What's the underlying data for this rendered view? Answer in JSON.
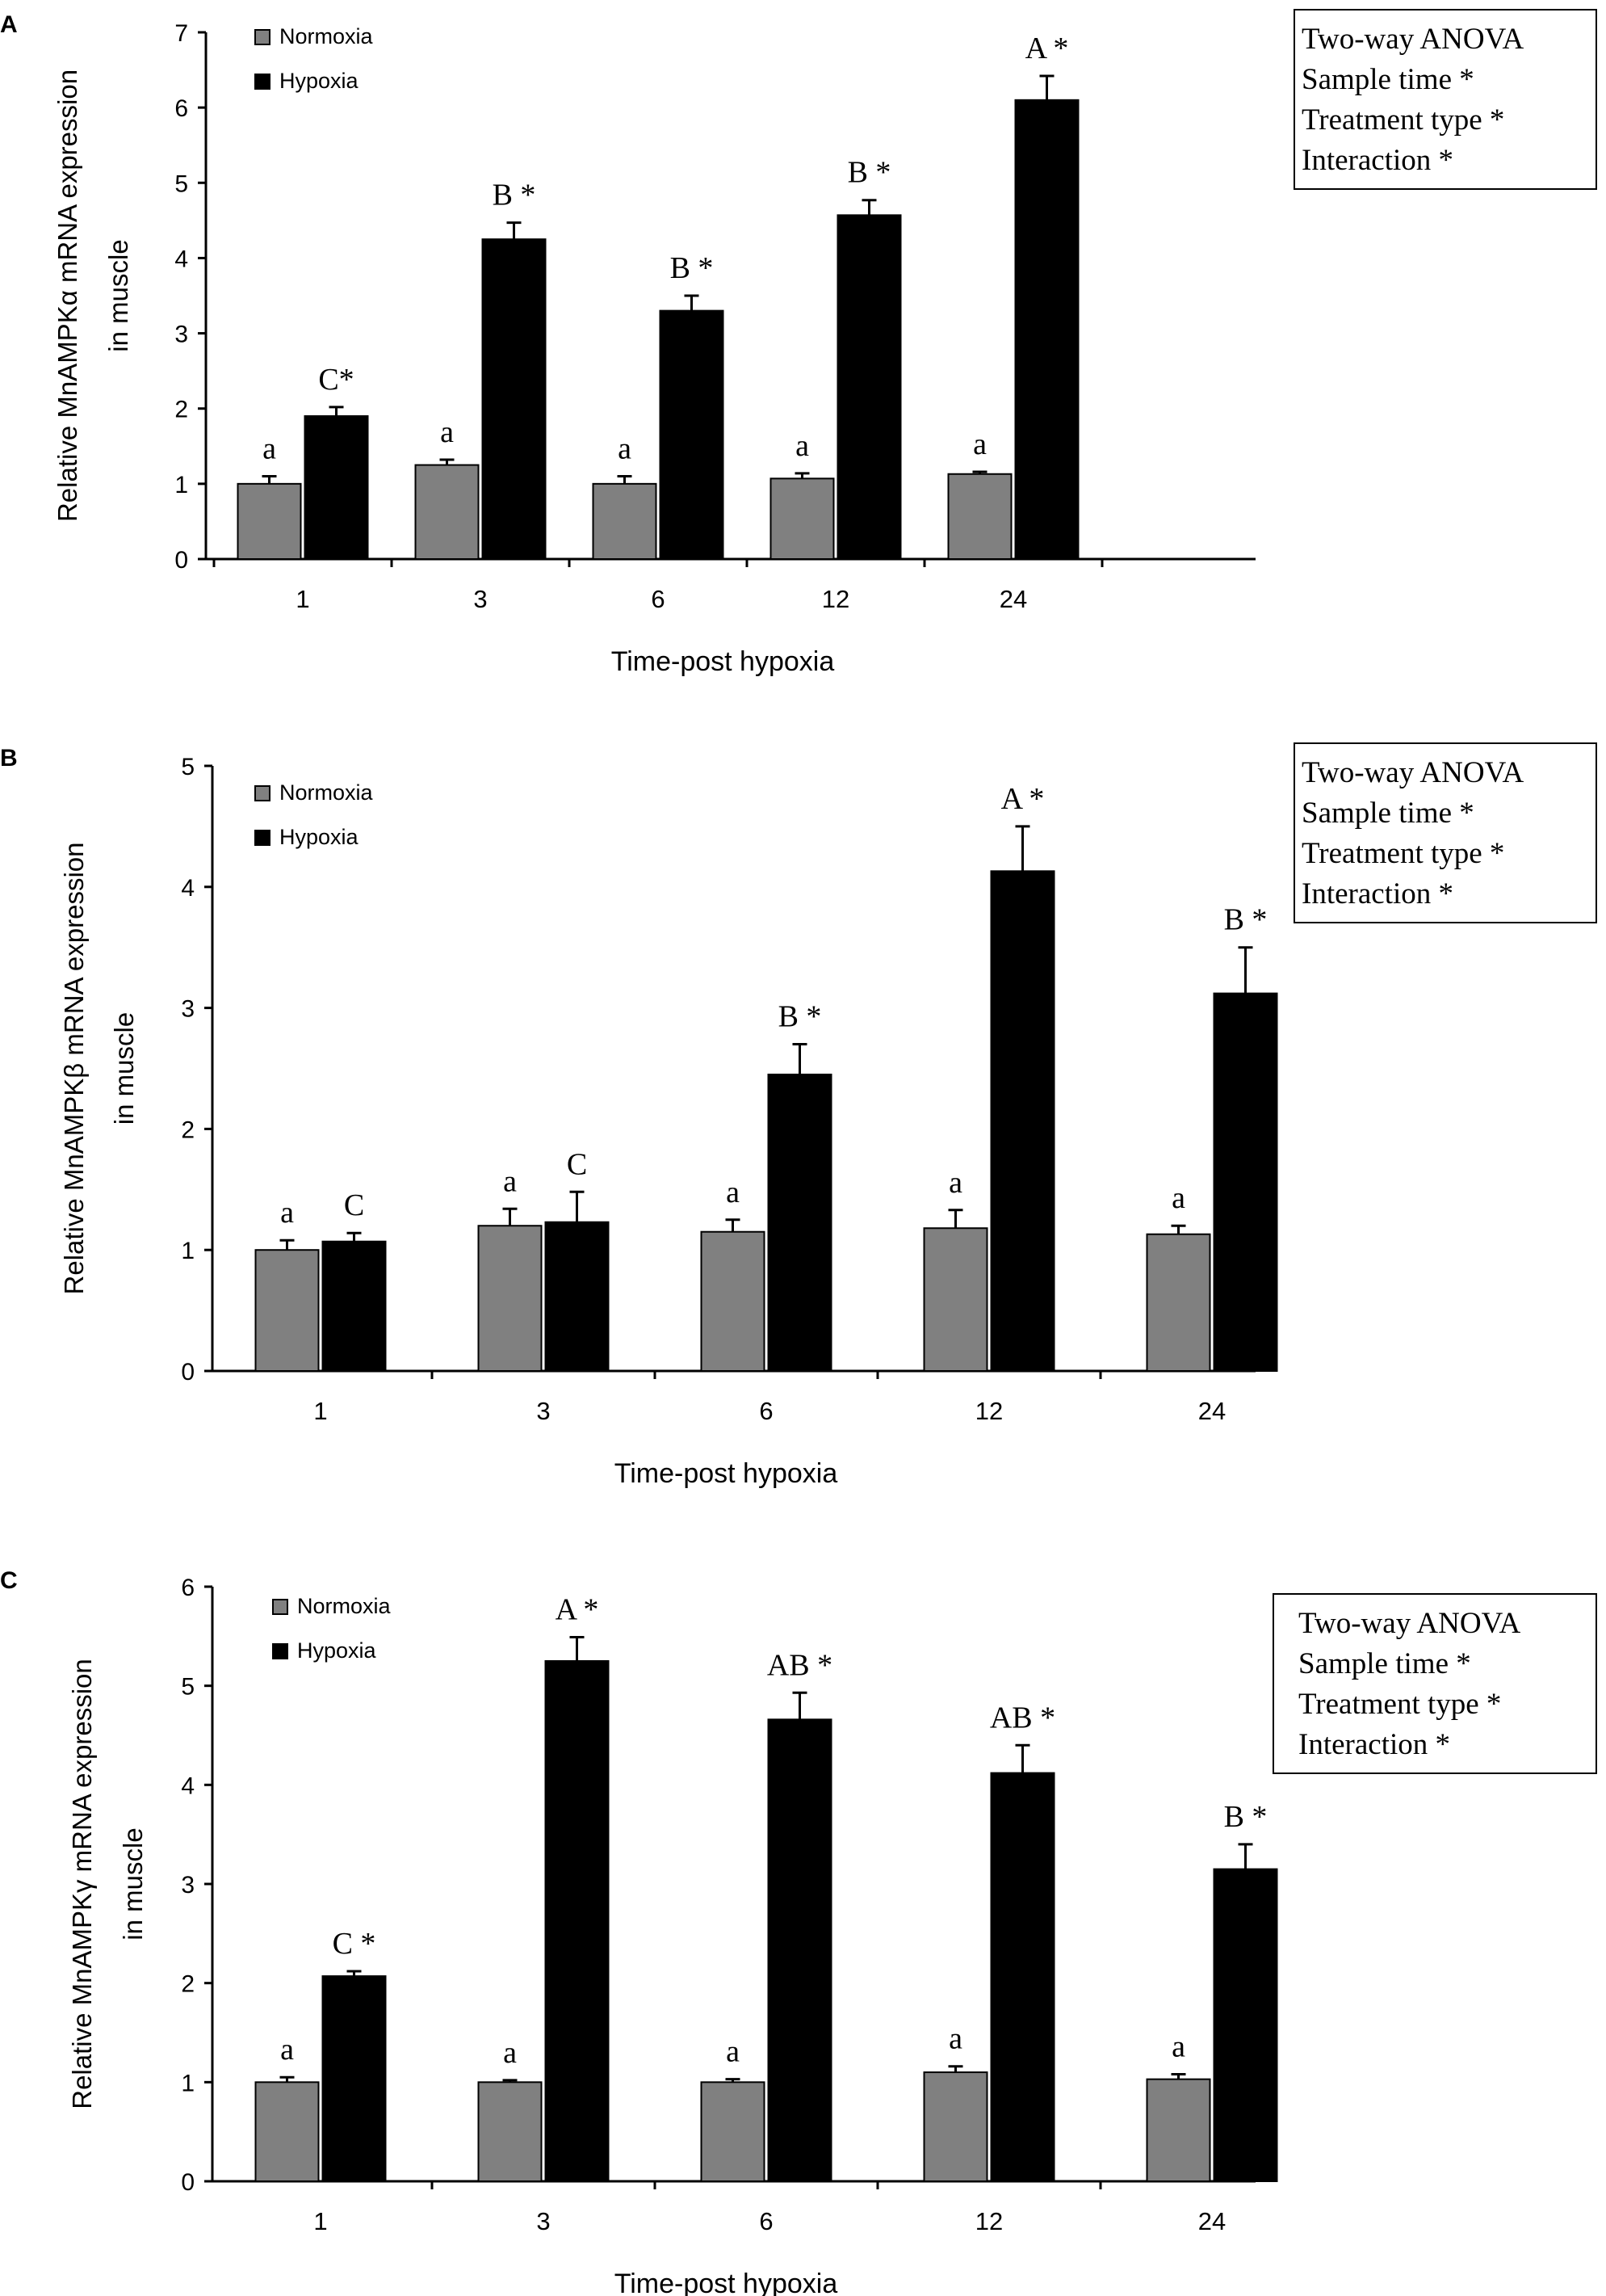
{
  "chart_data": [
    {
      "panel_label": "A",
      "type": "bar",
      "categories": [
        "1",
        "3",
        "6",
        "12",
        "24"
      ],
      "xlabel": "Time-post hypoxia",
      "ylabel_lines": [
        "Relative MnAMPKα mRNA expression",
        "in muscle"
      ],
      "ylim": [
        0,
        7
      ],
      "yticks": [
        0,
        1,
        2,
        3,
        4,
        5,
        6,
        7
      ],
      "legend": {
        "position": "top-left",
        "entries": [
          "Normoxia",
          "Hypoxia"
        ]
      },
      "series": [
        {
          "name": "Normoxia",
          "color": "#808080",
          "values": [
            1.0,
            1.25,
            1.0,
            1.07,
            1.13
          ],
          "errors": [
            0.1,
            0.07,
            0.1,
            0.07,
            0.03
          ],
          "labels": [
            "a",
            "a",
            "a",
            "a",
            "a"
          ]
        },
        {
          "name": "Hypoxia",
          "color": "#000000",
          "values": [
            1.9,
            4.25,
            3.3,
            4.57,
            6.1
          ],
          "errors": [
            0.12,
            0.22,
            0.2,
            0.2,
            0.32
          ],
          "labels": [
            "C*",
            "B *",
            "B *",
            "B *",
            "A *"
          ]
        }
      ],
      "stats_box": [
        "Two-way ANOVA",
        "Sample time *",
        "Treatment type *",
        "Interaction *"
      ]
    },
    {
      "panel_label": "B",
      "type": "bar",
      "categories": [
        "1",
        "3",
        "6",
        "12",
        "24"
      ],
      "xlabel": "Time-post hypoxia",
      "ylabel_lines": [
        "Relative MnAMPKβ mRNA expression",
        "in muscle"
      ],
      "ylim": [
        0,
        5
      ],
      "yticks": [
        0,
        1,
        2,
        3,
        4,
        5
      ],
      "legend": {
        "position": "top-left",
        "entries": [
          "Normoxia",
          "Hypoxia"
        ]
      },
      "series": [
        {
          "name": "Normoxia",
          "color": "#808080",
          "values": [
            1.0,
            1.2,
            1.15,
            1.18,
            1.13
          ],
          "errors": [
            0.08,
            0.14,
            0.1,
            0.15,
            0.07
          ],
          "labels": [
            "a",
            "a",
            "a",
            "a",
            "a"
          ]
        },
        {
          "name": "Hypoxia",
          "color": "#000000",
          "values": [
            1.07,
            1.23,
            2.45,
            4.13,
            3.12
          ],
          "errors": [
            0.07,
            0.25,
            0.25,
            0.37,
            0.38
          ],
          "labels": [
            "C",
            "C",
            "B *",
            "A *",
            "B *"
          ]
        }
      ],
      "stats_box": [
        "Two-way ANOVA",
        "Sample time *",
        "Treatment type *",
        "Interaction *"
      ]
    },
    {
      "panel_label": "C",
      "type": "bar",
      "categories": [
        "1",
        "3",
        "6",
        "12",
        "24"
      ],
      "xlabel": "Time-post hypoxia",
      "ylabel_lines": [
        "Relative MnAMPKγ mRNA expression",
        "in muscle"
      ],
      "ylim": [
        0,
        6
      ],
      "yticks": [
        0,
        1,
        2,
        3,
        4,
        5,
        6
      ],
      "legend": {
        "position": "top-left",
        "entries": [
          "Normoxia",
          "Hypoxia"
        ]
      },
      "series": [
        {
          "name": "Normoxia",
          "color": "#808080",
          "values": [
            1.0,
            1.0,
            1.0,
            1.1,
            1.03
          ],
          "errors": [
            0.05,
            0.02,
            0.03,
            0.06,
            0.05
          ],
          "labels": [
            "a",
            "a",
            "a",
            "a",
            "a"
          ]
        },
        {
          "name": "Hypoxia",
          "color": "#000000",
          "values": [
            2.07,
            5.25,
            4.66,
            4.12,
            3.15
          ],
          "errors": [
            0.05,
            0.24,
            0.27,
            0.28,
            0.25
          ],
          "labels": [
            "C *",
            "A *",
            "AB *",
            "AB *",
            "B *"
          ]
        }
      ],
      "stats_box": [
        "Two-way ANOVA",
        "Sample time *",
        "Treatment type *",
        "Interaction *"
      ]
    }
  ]
}
